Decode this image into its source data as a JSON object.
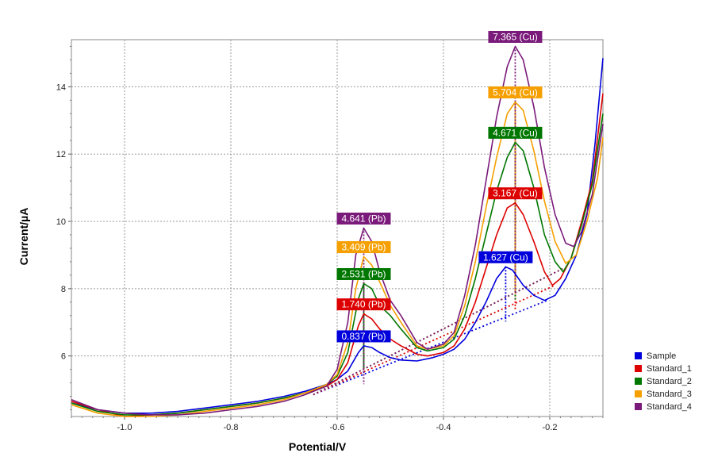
{
  "chart_data": {
    "type": "line",
    "xlabel": "Potential/V",
    "ylabel": "Current/µA",
    "xlim": [
      -1.1,
      -0.1
    ],
    "ylim": [
      4.2,
      15.4
    ],
    "xticks": [
      -1.0,
      -0.8,
      -0.6,
      -0.4,
      -0.2
    ],
    "xtick_labels": [
      "-1.0",
      "-0.8",
      "-0.6",
      "-0.4",
      "-0.2"
    ],
    "yticks": [
      6,
      8,
      10,
      12,
      14
    ],
    "ytick_labels": [
      "6",
      "8",
      "10",
      "12",
      "14"
    ],
    "grid": true,
    "legend_position": "bottom-right",
    "series": [
      {
        "name": "Sample",
        "color": "#0000dd",
        "points": [
          [
            -1.1,
            4.6
          ],
          [
            -1.05,
            4.4
          ],
          [
            -1.0,
            4.3
          ],
          [
            -0.95,
            4.3
          ],
          [
            -0.9,
            4.35
          ],
          [
            -0.85,
            4.45
          ],
          [
            -0.8,
            4.55
          ],
          [
            -0.75,
            4.65
          ],
          [
            -0.7,
            4.8
          ],
          [
            -0.66,
            4.95
          ],
          [
            -0.62,
            5.15
          ],
          [
            -0.6,
            5.3
          ],
          [
            -0.58,
            5.55
          ],
          [
            -0.56,
            6.1
          ],
          [
            -0.55,
            6.3
          ],
          [
            -0.535,
            6.25
          ],
          [
            -0.52,
            6.1
          ],
          [
            -0.5,
            5.95
          ],
          [
            -0.48,
            5.88
          ],
          [
            -0.45,
            5.85
          ],
          [
            -0.42,
            5.95
          ],
          [
            -0.4,
            6.05
          ],
          [
            -0.38,
            6.2
          ],
          [
            -0.36,
            6.5
          ],
          [
            -0.34,
            7.0
          ],
          [
            -0.32,
            7.6
          ],
          [
            -0.3,
            8.3
          ],
          [
            -0.283,
            8.65
          ],
          [
            -0.27,
            8.55
          ],
          [
            -0.25,
            8.1
          ],
          [
            -0.23,
            7.8
          ],
          [
            -0.21,
            7.65
          ],
          [
            -0.19,
            7.8
          ],
          [
            -0.17,
            8.3
          ],
          [
            -0.15,
            9.0
          ],
          [
            -0.13,
            10.2
          ],
          [
            -0.115,
            12.3
          ],
          [
            -0.1,
            14.85
          ]
        ],
        "peaks": [
          {
            "label": "0.837 (Pb)",
            "x": -0.55,
            "y": 6.3,
            "base": 5.46
          },
          {
            "label": "1.627 (Cu)",
            "x": -0.283,
            "y": 8.65,
            "base": 7.02
          }
        ]
      },
      {
        "name": "Standard_1",
        "color": "#dd0000",
        "points": [
          [
            -1.1,
            4.65
          ],
          [
            -1.05,
            4.4
          ],
          [
            -1.0,
            4.2
          ],
          [
            -0.95,
            4.25
          ],
          [
            -0.9,
            4.3
          ],
          [
            -0.85,
            4.4
          ],
          [
            -0.8,
            4.5
          ],
          [
            -0.75,
            4.6
          ],
          [
            -0.7,
            4.75
          ],
          [
            -0.66,
            4.9
          ],
          [
            -0.62,
            5.1
          ],
          [
            -0.6,
            5.3
          ],
          [
            -0.58,
            5.8
          ],
          [
            -0.56,
            6.9
          ],
          [
            -0.55,
            7.25
          ],
          [
            -0.535,
            7.1
          ],
          [
            -0.52,
            6.8
          ],
          [
            -0.5,
            6.5
          ],
          [
            -0.48,
            6.3
          ],
          [
            -0.45,
            6.05
          ],
          [
            -0.43,
            6.0
          ],
          [
            -0.4,
            6.1
          ],
          [
            -0.38,
            6.3
          ],
          [
            -0.36,
            6.8
          ],
          [
            -0.34,
            7.6
          ],
          [
            -0.32,
            8.6
          ],
          [
            -0.3,
            9.6
          ],
          [
            -0.28,
            10.4
          ],
          [
            -0.265,
            10.55
          ],
          [
            -0.25,
            10.2
          ],
          [
            -0.23,
            9.4
          ],
          [
            -0.21,
            8.5
          ],
          [
            -0.195,
            8.1
          ],
          [
            -0.18,
            8.3
          ],
          [
            -0.16,
            8.9
          ],
          [
            -0.14,
            10.0
          ],
          [
            -0.12,
            11.2
          ],
          [
            -0.1,
            13.8
          ]
        ],
        "peaks": [
          {
            "label": "1.740 (Pb)",
            "x": -0.55,
            "y": 7.25,
            "base": 5.51
          },
          {
            "label": "3.167 (Cu)",
            "x": -0.265,
            "y": 10.55,
            "base": 7.38
          }
        ]
      },
      {
        "name": "Standard_2",
        "color": "#007700",
        "points": [
          [
            -1.1,
            4.6
          ],
          [
            -1.05,
            4.35
          ],
          [
            -1.0,
            4.25
          ],
          [
            -0.95,
            4.25
          ],
          [
            -0.9,
            4.3
          ],
          [
            -0.85,
            4.4
          ],
          [
            -0.8,
            4.5
          ],
          [
            -0.75,
            4.6
          ],
          [
            -0.7,
            4.75
          ],
          [
            -0.66,
            4.9
          ],
          [
            -0.62,
            5.15
          ],
          [
            -0.6,
            5.4
          ],
          [
            -0.58,
            6.1
          ],
          [
            -0.56,
            7.7
          ],
          [
            -0.55,
            8.15
          ],
          [
            -0.535,
            8.0
          ],
          [
            -0.52,
            7.5
          ],
          [
            -0.5,
            7.2
          ],
          [
            -0.48,
            6.8
          ],
          [
            -0.45,
            6.25
          ],
          [
            -0.43,
            6.15
          ],
          [
            -0.4,
            6.25
          ],
          [
            -0.38,
            6.5
          ],
          [
            -0.36,
            7.2
          ],
          [
            -0.34,
            8.3
          ],
          [
            -0.32,
            9.6
          ],
          [
            -0.3,
            10.9
          ],
          [
            -0.28,
            11.9
          ],
          [
            -0.265,
            12.35
          ],
          [
            -0.25,
            12.1
          ],
          [
            -0.23,
            11.0
          ],
          [
            -0.21,
            9.6
          ],
          [
            -0.19,
            8.8
          ],
          [
            -0.175,
            8.5
          ],
          [
            -0.16,
            8.9
          ],
          [
            -0.14,
            9.9
          ],
          [
            -0.12,
            11.1
          ],
          [
            -0.1,
            13.2
          ]
        ],
        "peaks": [
          {
            "label": "2.531 (Pb)",
            "x": -0.55,
            "y": 8.15,
            "base": 5.62
          },
          {
            "label": "4.671 (Cu)",
            "x": -0.265,
            "y": 12.35,
            "base": 7.68
          }
        ]
      },
      {
        "name": "Standard_3",
        "color": "#f5a000",
        "points": [
          [
            -1.1,
            4.55
          ],
          [
            -1.05,
            4.3
          ],
          [
            -1.0,
            4.2
          ],
          [
            -0.95,
            4.2
          ],
          [
            -0.9,
            4.25
          ],
          [
            -0.85,
            4.35
          ],
          [
            -0.8,
            4.45
          ],
          [
            -0.75,
            4.55
          ],
          [
            -0.7,
            4.7
          ],
          [
            -0.66,
            4.9
          ],
          [
            -0.62,
            5.15
          ],
          [
            -0.6,
            5.45
          ],
          [
            -0.58,
            6.4
          ],
          [
            -0.565,
            8.0
          ],
          [
            -0.55,
            8.95
          ],
          [
            -0.535,
            8.7
          ],
          [
            -0.52,
            8.2
          ],
          [
            -0.5,
            7.5
          ],
          [
            -0.48,
            7.0
          ],
          [
            -0.45,
            6.3
          ],
          [
            -0.43,
            6.2
          ],
          [
            -0.4,
            6.3
          ],
          [
            -0.38,
            6.6
          ],
          [
            -0.36,
            7.5
          ],
          [
            -0.34,
            8.8
          ],
          [
            -0.32,
            10.4
          ],
          [
            -0.3,
            11.9
          ],
          [
            -0.28,
            13.2
          ],
          [
            -0.265,
            13.55
          ],
          [
            -0.25,
            13.3
          ],
          [
            -0.23,
            12.1
          ],
          [
            -0.21,
            10.6
          ],
          [
            -0.19,
            9.4
          ],
          [
            -0.17,
            8.75
          ],
          [
            -0.15,
            9.0
          ],
          [
            -0.13,
            10.0
          ],
          [
            -0.11,
            11.3
          ],
          [
            -0.1,
            12.5
          ]
        ],
        "peaks": [
          {
            "label": "3.409 (Pb)",
            "x": -0.55,
            "y": 8.95,
            "base": 5.54
          },
          {
            "label": "5.704 (Cu)",
            "x": -0.265,
            "y": 13.55,
            "base": 7.85
          }
        ]
      },
      {
        "name": "Standard_4",
        "color": "#7a1a7a",
        "points": [
          [
            -1.1,
            4.7
          ],
          [
            -1.05,
            4.4
          ],
          [
            -1.0,
            4.3
          ],
          [
            -0.95,
            4.25
          ],
          [
            -0.9,
            4.25
          ],
          [
            -0.85,
            4.3
          ],
          [
            -0.8,
            4.4
          ],
          [
            -0.75,
            4.5
          ],
          [
            -0.7,
            4.65
          ],
          [
            -0.66,
            4.85
          ],
          [
            -0.62,
            5.1
          ],
          [
            -0.6,
            5.6
          ],
          [
            -0.58,
            7.0
          ],
          [
            -0.565,
            9.0
          ],
          [
            -0.55,
            9.8
          ],
          [
            -0.535,
            9.4
          ],
          [
            -0.52,
            8.5
          ],
          [
            -0.5,
            7.65
          ],
          [
            -0.48,
            7.2
          ],
          [
            -0.45,
            6.4
          ],
          [
            -0.43,
            6.2
          ],
          [
            -0.4,
            6.35
          ],
          [
            -0.38,
            6.7
          ],
          [
            -0.36,
            7.8
          ],
          [
            -0.34,
            9.3
          ],
          [
            -0.32,
            11.2
          ],
          [
            -0.3,
            13.1
          ],
          [
            -0.28,
            14.6
          ],
          [
            -0.265,
            15.2
          ],
          [
            -0.25,
            14.8
          ],
          [
            -0.23,
            13.4
          ],
          [
            -0.21,
            11.6
          ],
          [
            -0.19,
            10.2
          ],
          [
            -0.17,
            9.35
          ],
          [
            -0.155,
            9.25
          ],
          [
            -0.14,
            9.7
          ],
          [
            -0.12,
            10.8
          ],
          [
            -0.1,
            12.9
          ]
        ],
        "peaks": [
          {
            "label": "4.641 (Pb)",
            "x": -0.55,
            "y": 9.8,
            "base": 5.16
          },
          {
            "label": "7.365 (Cu)",
            "x": -0.265,
            "y": 15.2,
            "base": 7.84
          }
        ]
      }
    ]
  }
}
